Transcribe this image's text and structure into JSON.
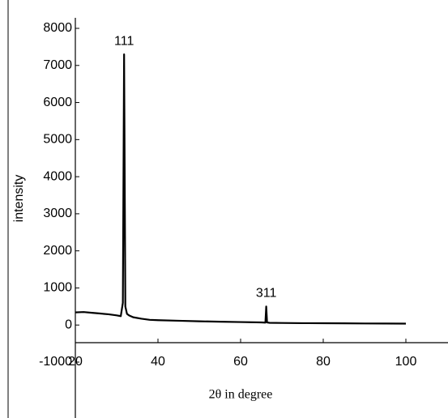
{
  "chart_data": {
    "type": "line",
    "x_label": "2θ in degree",
    "y_label": "intensity",
    "x": [
      20,
      22,
      24,
      26,
      28,
      30,
      31,
      31.5,
      31.8,
      32.1,
      32.5,
      33,
      34,
      36,
      38,
      40,
      45,
      50,
      55,
      60,
      65,
      66,
      66.2,
      66.4,
      67,
      70,
      75,
      80,
      85,
      90,
      95,
      100
    ],
    "series": [
      {
        "name": "intensity",
        "color": "#000000",
        "values": [
          340,
          350,
          330,
          310,
          290,
          260,
          240,
          600,
          7300,
          500,
          300,
          260,
          210,
          170,
          140,
          130,
          115,
          100,
          90,
          80,
          70,
          65,
          500,
          70,
          60,
          55,
          50,
          48,
          45,
          42,
          40,
          38
        ]
      }
    ],
    "annotations": [
      {
        "text": "111",
        "x": 31.8
      },
      {
        "text": "311",
        "x": 66.2
      }
    ],
    "xlim": [
      20,
      110
    ],
    "xticks": [
      20,
      40,
      60,
      80,
      100
    ],
    "ylim": [
      -1000,
      8000
    ],
    "yticks": [
      -1000,
      0,
      1000,
      2000,
      3000,
      4000,
      5000,
      6000,
      7000,
      8000
    ]
  }
}
